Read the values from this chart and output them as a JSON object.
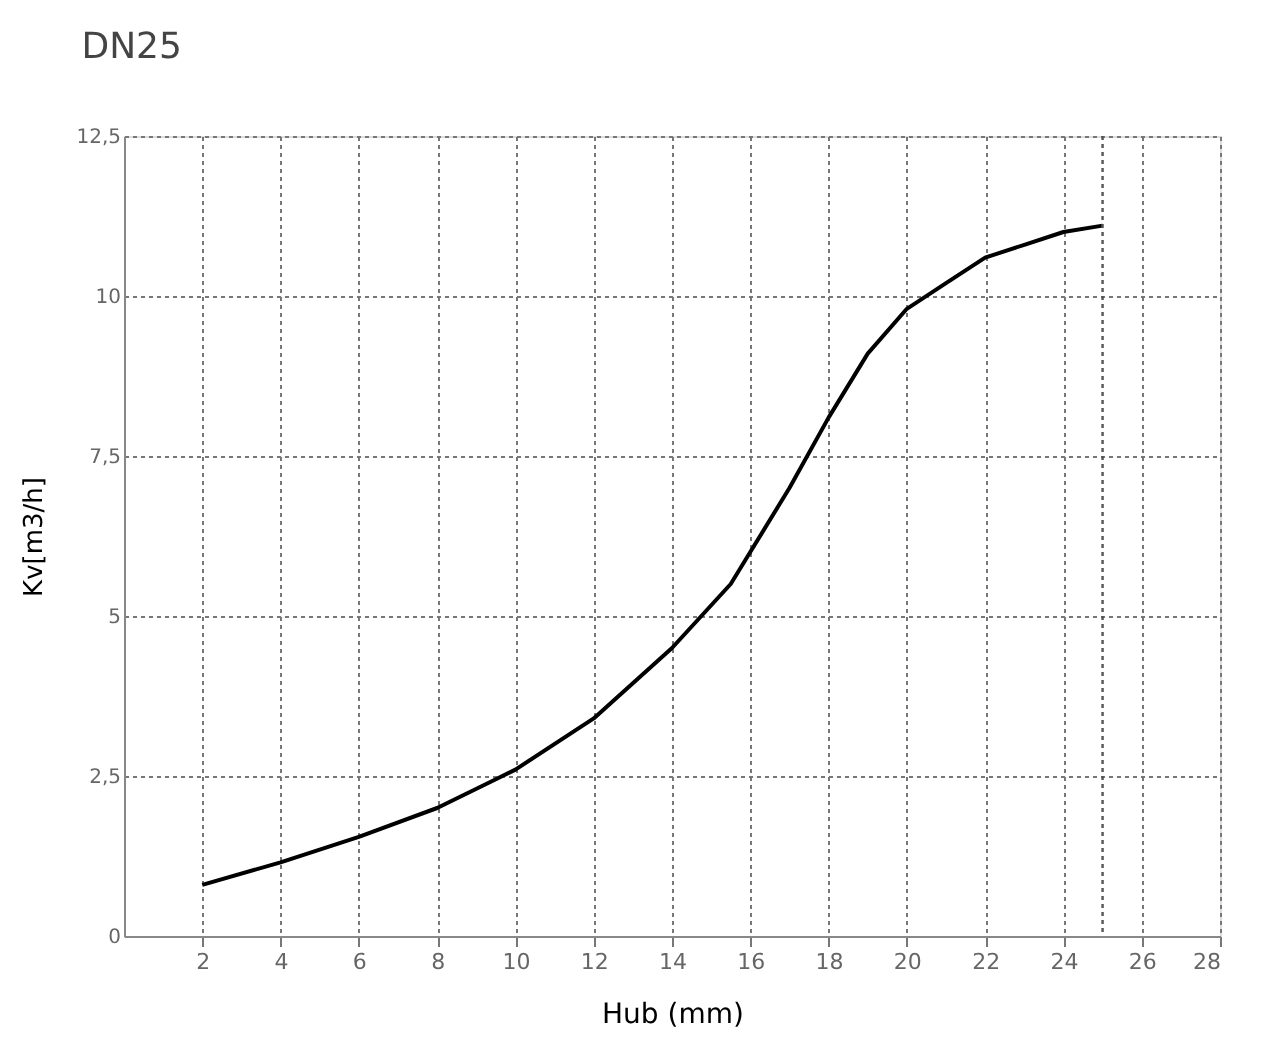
{
  "chart_data": {
    "type": "line",
    "title": "DN25",
    "xlabel": "Hub (mm)",
    "ylabel": "Kv[m3/h]",
    "x": [
      2,
      4,
      6,
      8,
      9.5,
      10,
      12,
      14,
      15.5,
      16,
      17,
      18,
      19,
      20,
      21,
      22,
      23,
      24,
      25
    ],
    "series": [
      {
        "color": "#000000",
        "values": [
          0.8,
          1.15,
          1.55,
          2.0,
          2.45,
          2.6,
          3.4,
          4.5,
          5.5,
          6.0,
          7.0,
          8.1,
          9.1,
          9.8,
          10.2,
          10.6,
          10.8,
          11.0,
          11.1
        ]
      }
    ],
    "xlim": [
      0,
      28
    ],
    "xticks": [
      2,
      4,
      6,
      8,
      10,
      12,
      14,
      16,
      18,
      20,
      22,
      24,
      26,
      28
    ],
    "ylim": [
      0,
      12.5
    ],
    "yticks": [
      0,
      {
        "value": 2.5,
        "label": "2,5"
      },
      5,
      {
        "value": 7.5,
        "label": "7,5"
      },
      10,
      {
        "value": 12.5,
        "label": "12,5"
      }
    ],
    "ref_lines": [
      {
        "axis": "x",
        "value": 25,
        "color": "#555555",
        "line_style": "dotted"
      }
    ],
    "grid": true,
    "marker": "none",
    "line_style": "solid"
  }
}
